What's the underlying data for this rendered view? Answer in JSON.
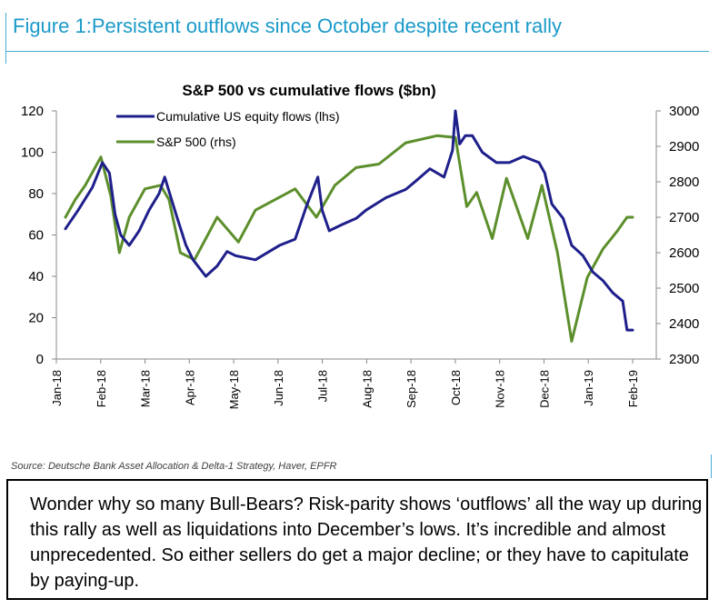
{
  "figure": {
    "title": "Figure 1:Persistent outflows since October despite recent rally",
    "source": "Source: Deutsche Bank Asset Allocation & Delta-1 Strategy, Haver, EPFR"
  },
  "commentary": {
    "text": "Wonder why so many Bull-Bears? Risk-parity shows ‘outflows’ all the way up during this rally as well as liquidations into December’s lows. It’s incredible and almost unprecedented. So either sellers do get a major decline; or they have to capitulate by paying-up."
  },
  "chart_data": {
    "type": "line",
    "title": "S&P 500 vs cumulative flows ($bn)",
    "x_ticks": [
      "Jan-18",
      "Feb-18",
      "Mar-18",
      "Apr-18",
      "May-18",
      "Jun-18",
      "Jul-18",
      "Aug-18",
      "Sep-18",
      "Oct-18",
      "Nov-18",
      "Dec-18",
      "Jan-19",
      "Feb-19"
    ],
    "ylim_left": [
      0,
      120
    ],
    "yticks_left": [
      0,
      20,
      40,
      60,
      80,
      100,
      120
    ],
    "ylim_right": [
      2300,
      3000
    ],
    "yticks_right": [
      2300,
      2400,
      2500,
      2600,
      2700,
      2800,
      2900,
      3000
    ],
    "legend_position": "top-left",
    "grid": false,
    "series": [
      {
        "name": "Cumulative US equity flows (lhs)",
        "axis": "left",
        "color": "#1f1f8c",
        "x": [
          "2018-01-01",
          "2018-01-10",
          "2018-01-20",
          "2018-01-27",
          "2018-02-01",
          "2018-02-05",
          "2018-02-09",
          "2018-02-15",
          "2018-02-22",
          "2018-03-01",
          "2018-03-08",
          "2018-03-12",
          "2018-03-20",
          "2018-03-27",
          "2018-04-01",
          "2018-04-10",
          "2018-04-18",
          "2018-04-25",
          "2018-05-01",
          "2018-05-15",
          "2018-06-01",
          "2018-06-12",
          "2018-06-20",
          "2018-06-28",
          "2018-07-01",
          "2018-07-06",
          "2018-07-15",
          "2018-07-25",
          "2018-08-01",
          "2018-08-15",
          "2018-08-29",
          "2018-09-05",
          "2018-09-15",
          "2018-09-25",
          "2018-10-01",
          "2018-10-03",
          "2018-10-06",
          "2018-10-10",
          "2018-10-15",
          "2018-10-22",
          "2018-11-01",
          "2018-11-10",
          "2018-11-20",
          "2018-12-01",
          "2018-12-05",
          "2018-12-10",
          "2018-12-18",
          "2018-12-24",
          "2019-01-01",
          "2019-01-08",
          "2019-01-15",
          "2019-01-22",
          "2019-01-29",
          "2019-02-01",
          "2019-02-05"
        ],
        "y": [
          63,
          72,
          83,
          95,
          90,
          70,
          60,
          55,
          62,
          72,
          80,
          88,
          70,
          55,
          48,
          40,
          45,
          52,
          50,
          48,
          55,
          58,
          74,
          88,
          72,
          62,
          65,
          68,
          72,
          78,
          82,
          86,
          92,
          88,
          101,
          120,
          104,
          108,
          108,
          100,
          95,
          95,
          98,
          95,
          90,
          75,
          68,
          55,
          50,
          42,
          38,
          32,
          28,
          14,
          14
        ]
      },
      {
        "name": "S&P 500 (rhs)",
        "axis": "right",
        "color": "#5c8f2c",
        "x": [
          "2018-01-01",
          "2018-01-08",
          "2018-01-15",
          "2018-01-26",
          "2018-02-02",
          "2018-02-08",
          "2018-02-15",
          "2018-02-26",
          "2018-03-09",
          "2018-03-15",
          "2018-03-23",
          "2018-04-02",
          "2018-04-18",
          "2018-05-03",
          "2018-05-15",
          "2018-06-12",
          "2018-06-27",
          "2018-07-10",
          "2018-07-25",
          "2018-08-10",
          "2018-08-29",
          "2018-09-20",
          "2018-10-03",
          "2018-10-11",
          "2018-10-18",
          "2018-10-29",
          "2018-11-08",
          "2018-11-23",
          "2018-12-03",
          "2018-12-14",
          "2018-12-24",
          "2019-01-04",
          "2019-01-15",
          "2019-01-25",
          "2019-02-01",
          "2019-02-05"
        ],
        "y": [
          2700,
          2750,
          2790,
          2870,
          2760,
          2600,
          2700,
          2780,
          2790,
          2750,
          2600,
          2580,
          2700,
          2630,
          2720,
          2780,
          2700,
          2790,
          2840,
          2850,
          2910,
          2930,
          2925,
          2730,
          2770,
          2640,
          2810,
          2640,
          2790,
          2600,
          2350,
          2530,
          2610,
          2660,
          2700,
          2700
        ]
      }
    ]
  }
}
